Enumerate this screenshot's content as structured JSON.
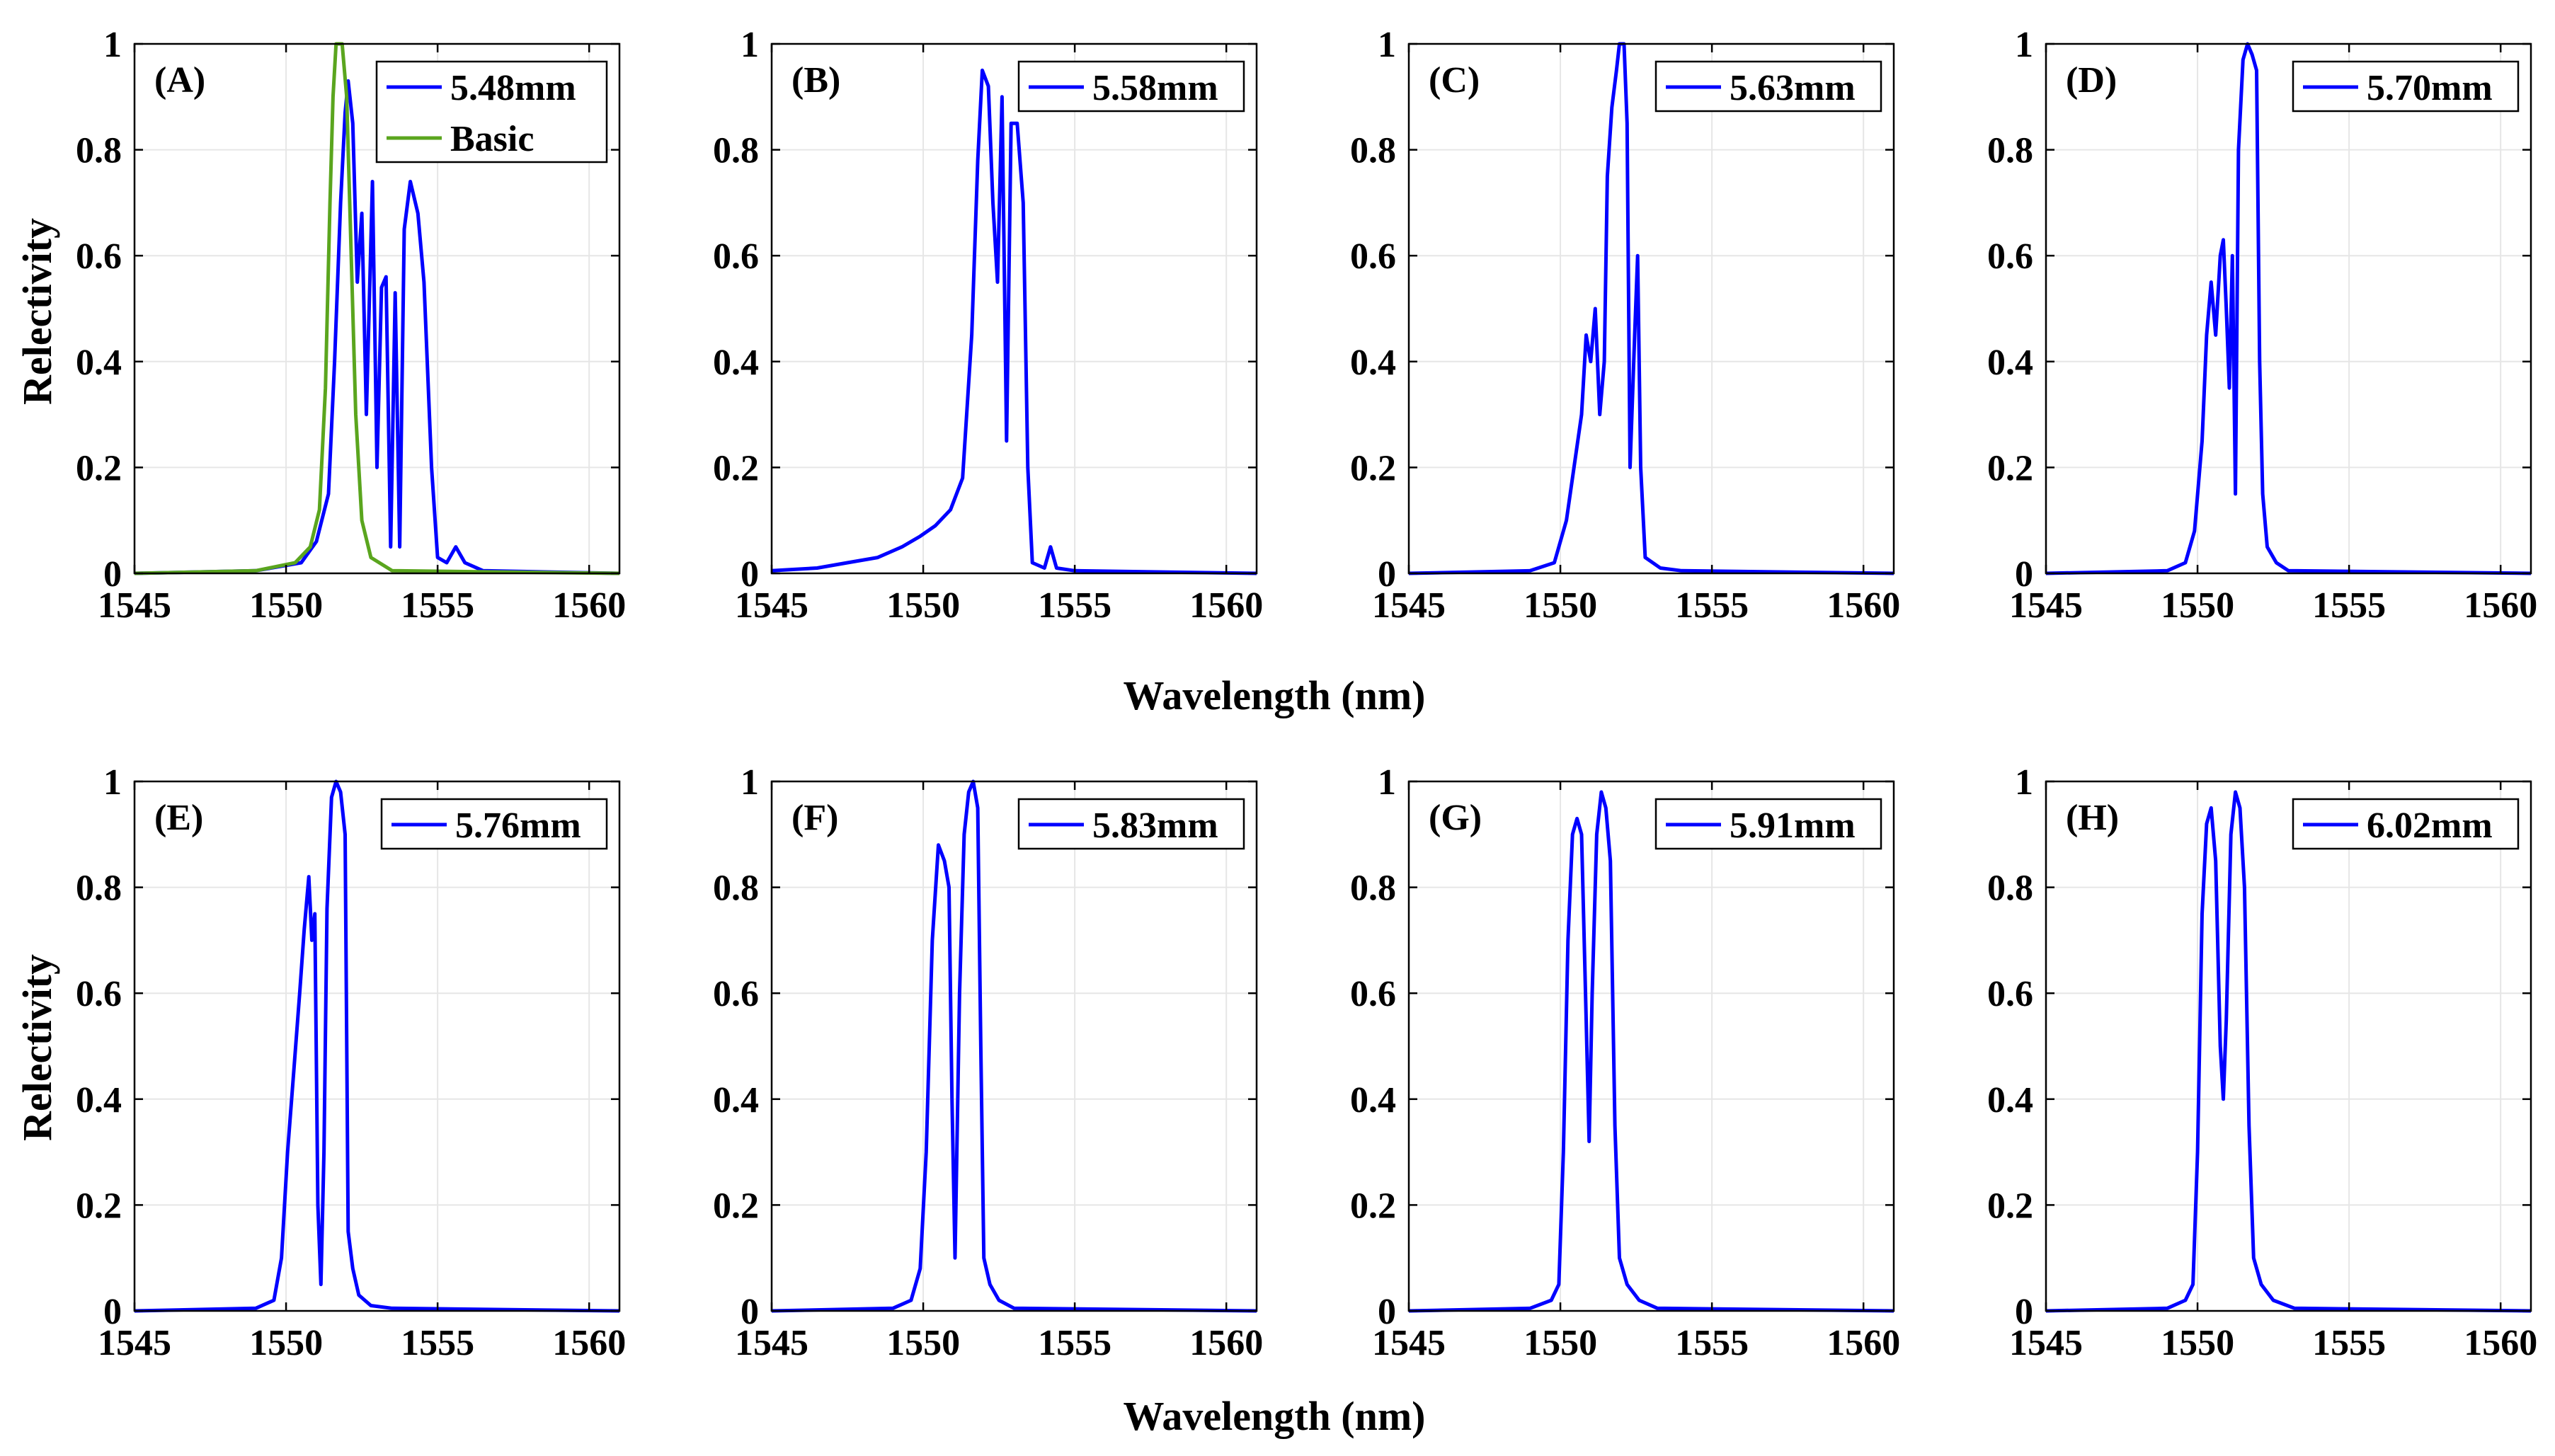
{
  "figure": {
    "xlabel_top": "Wavelength (nm)",
    "xlabel_bottom": "Wavelength (nm)",
    "ylabel_top": "Relectivity",
    "ylabel_bottom": "Relectivity"
  },
  "colors": {
    "series": "#0000ff",
    "basic": "#5aa51e",
    "grid": "#e6e6e6"
  },
  "chart_data": [
    {
      "type": "line",
      "label": "(A)",
      "xlim": [
        1545,
        1561
      ],
      "ylim": [
        0,
        1
      ],
      "xticks": [
        "1545",
        "1550",
        "1555",
        "1560"
      ],
      "yticks": [
        "0",
        "0.2",
        "0.4",
        "0.6",
        "0.8",
        "1"
      ],
      "legend": [
        "5.48mm",
        "Basic"
      ],
      "series": [
        {
          "name": "5.48mm",
          "color": "#0000ff",
          "points": [
            [
              1545,
              0
            ],
            [
              1549,
              0.005
            ],
            [
              1550.5,
              0.02
            ],
            [
              1551.0,
              0.06
            ],
            [
              1551.4,
              0.15
            ],
            [
              1551.6,
              0.4
            ],
            [
              1551.8,
              0.7
            ],
            [
              1551.95,
              0.87
            ],
            [
              1552.05,
              0.93
            ],
            [
              1552.2,
              0.85
            ],
            [
              1552.35,
              0.55
            ],
            [
              1552.5,
              0.68
            ],
            [
              1552.65,
              0.3
            ],
            [
              1552.85,
              0.74
            ],
            [
              1553.0,
              0.2
            ],
            [
              1553.15,
              0.54
            ],
            [
              1553.3,
              0.56
            ],
            [
              1553.45,
              0.05
            ],
            [
              1553.6,
              0.53
            ],
            [
              1553.75,
              0.05
            ],
            [
              1553.9,
              0.65
            ],
            [
              1554.1,
              0.74
            ],
            [
              1554.35,
              0.68
            ],
            [
              1554.55,
              0.55
            ],
            [
              1554.8,
              0.2
            ],
            [
              1555.0,
              0.03
            ],
            [
              1555.3,
              0.02
            ],
            [
              1555.6,
              0.05
            ],
            [
              1555.9,
              0.02
            ],
            [
              1556.5,
              0.005
            ],
            [
              1561,
              0
            ]
          ]
        },
        {
          "name": "Basic",
          "color": "#5aa51e",
          "points": [
            [
              1545,
              0
            ],
            [
              1549,
              0.005
            ],
            [
              1550.3,
              0.02
            ],
            [
              1550.8,
              0.05
            ],
            [
              1551.1,
              0.12
            ],
            [
              1551.3,
              0.35
            ],
            [
              1551.45,
              0.7
            ],
            [
              1551.55,
              0.9
            ],
            [
              1551.65,
              1.0
            ],
            [
              1551.85,
              1.0
            ],
            [
              1552.0,
              0.9
            ],
            [
              1552.15,
              0.6
            ],
            [
              1552.3,
              0.3
            ],
            [
              1552.5,
              0.1
            ],
            [
              1552.8,
              0.03
            ],
            [
              1553.5,
              0.005
            ],
            [
              1561,
              0
            ]
          ]
        }
      ]
    },
    {
      "type": "line",
      "label": "(B)",
      "xlim": [
        1545,
        1561
      ],
      "ylim": [
        0,
        1
      ],
      "xticks": [
        "1545",
        "1550",
        "1555",
        "1560"
      ],
      "yticks": [
        "0",
        "0.2",
        "0.4",
        "0.6",
        "0.8",
        "1"
      ],
      "legend": [
        "5.58mm"
      ],
      "series": [
        {
          "name": "5.58mm",
          "color": "#0000ff",
          "points": [
            [
              1545,
              0.005
            ],
            [
              1546.5,
              0.01
            ],
            [
              1547.5,
              0.02
            ],
            [
              1548.5,
              0.03
            ],
            [
              1549.3,
              0.05
            ],
            [
              1549.9,
              0.07
            ],
            [
              1550.4,
              0.09
            ],
            [
              1550.9,
              0.12
            ],
            [
              1551.3,
              0.18
            ],
            [
              1551.6,
              0.45
            ],
            [
              1551.8,
              0.78
            ],
            [
              1551.95,
              0.95
            ],
            [
              1552.15,
              0.92
            ],
            [
              1552.3,
              0.7
            ],
            [
              1552.45,
              0.55
            ],
            [
              1552.6,
              0.9
            ],
            [
              1552.75,
              0.25
            ],
            [
              1552.9,
              0.85
            ],
            [
              1553.1,
              0.85
            ],
            [
              1553.3,
              0.7
            ],
            [
              1553.45,
              0.2
            ],
            [
              1553.6,
              0.02
            ],
            [
              1554.0,
              0.01
            ],
            [
              1554.2,
              0.05
            ],
            [
              1554.4,
              0.01
            ],
            [
              1555,
              0.005
            ],
            [
              1561,
              0
            ]
          ]
        }
      ]
    },
    {
      "type": "line",
      "label": "(C)",
      "xlim": [
        1545,
        1561
      ],
      "ylim": [
        0,
        1
      ],
      "xticks": [
        "1545",
        "1550",
        "1555",
        "1560"
      ],
      "yticks": [
        "0",
        "0.2",
        "0.4",
        "0.6",
        "0.8",
        "1"
      ],
      "legend": [
        "5.63mm"
      ],
      "series": [
        {
          "name": "5.63mm",
          "color": "#0000ff",
          "points": [
            [
              1545,
              0
            ],
            [
              1549,
              0.005
            ],
            [
              1549.8,
              0.02
            ],
            [
              1550.2,
              0.1
            ],
            [
              1550.45,
              0.2
            ],
            [
              1550.7,
              0.3
            ],
            [
              1550.85,
              0.45
            ],
            [
              1551.0,
              0.4
            ],
            [
              1551.15,
              0.5
            ],
            [
              1551.3,
              0.3
            ],
            [
              1551.45,
              0.4
            ],
            [
              1551.55,
              0.75
            ],
            [
              1551.7,
              0.88
            ],
            [
              1551.85,
              0.95
            ],
            [
              1551.95,
              1.0
            ],
            [
              1552.1,
              1.0
            ],
            [
              1552.2,
              0.85
            ],
            [
              1552.3,
              0.2
            ],
            [
              1552.45,
              0.45
            ],
            [
              1552.55,
              0.6
            ],
            [
              1552.65,
              0.2
            ],
            [
              1552.8,
              0.03
            ],
            [
              1553.3,
              0.01
            ],
            [
              1554,
              0.005
            ],
            [
              1561,
              0
            ]
          ]
        }
      ]
    },
    {
      "type": "line",
      "label": "(D)",
      "xlim": [
        1545,
        1561
      ],
      "ylim": [
        0,
        1
      ],
      "xticks": [
        "1545",
        "1550",
        "1555",
        "1560"
      ],
      "yticks": [
        "0",
        "0.2",
        "0.4",
        "0.6",
        "0.8",
        "1"
      ],
      "legend": [
        "5.70mm"
      ],
      "series": [
        {
          "name": "5.70mm",
          "color": "#0000ff",
          "points": [
            [
              1545,
              0
            ],
            [
              1549,
              0.005
            ],
            [
              1549.6,
              0.02
            ],
            [
              1549.9,
              0.08
            ],
            [
              1550.15,
              0.25
            ],
            [
              1550.3,
              0.45
            ],
            [
              1550.45,
              0.55
            ],
            [
              1550.6,
              0.45
            ],
            [
              1550.75,
              0.6
            ],
            [
              1550.85,
              0.63
            ],
            [
              1550.95,
              0.5
            ],
            [
              1551.05,
              0.35
            ],
            [
              1551.15,
              0.6
            ],
            [
              1551.25,
              0.15
            ],
            [
              1551.35,
              0.8
            ],
            [
              1551.5,
              0.97
            ],
            [
              1551.65,
              1.0
            ],
            [
              1551.8,
              0.98
            ],
            [
              1551.95,
              0.95
            ],
            [
              1552.05,
              0.4
            ],
            [
              1552.15,
              0.15
            ],
            [
              1552.3,
              0.05
            ],
            [
              1552.6,
              0.02
            ],
            [
              1553,
              0.005
            ],
            [
              1561,
              0
            ]
          ]
        }
      ]
    },
    {
      "type": "line",
      "label": "(E)",
      "xlim": [
        1545,
        1561
      ],
      "ylim": [
        0,
        1
      ],
      "xticks": [
        "1545",
        "1550",
        "1555",
        "1560"
      ],
      "yticks": [
        "0",
        "0.2",
        "0.4",
        "0.6",
        "0.8",
        "1"
      ],
      "legend": [
        "5.76mm"
      ],
      "series": [
        {
          "name": "5.76mm",
          "color": "#0000ff",
          "points": [
            [
              1545,
              0
            ],
            [
              1549,
              0.005
            ],
            [
              1549.6,
              0.02
            ],
            [
              1549.85,
              0.1
            ],
            [
              1550.05,
              0.3
            ],
            [
              1550.25,
              0.45
            ],
            [
              1550.45,
              0.6
            ],
            [
              1550.6,
              0.72
            ],
            [
              1550.75,
              0.82
            ],
            [
              1550.85,
              0.7
            ],
            [
              1550.95,
              0.75
            ],
            [
              1551.05,
              0.2
            ],
            [
              1551.15,
              0.05
            ],
            [
              1551.25,
              0.3
            ],
            [
              1551.35,
              0.76
            ],
            [
              1551.5,
              0.97
            ],
            [
              1551.65,
              1.0
            ],
            [
              1551.8,
              0.98
            ],
            [
              1551.95,
              0.9
            ],
            [
              1552.05,
              0.15
            ],
            [
              1552.2,
              0.08
            ],
            [
              1552.4,
              0.03
            ],
            [
              1552.8,
              0.01
            ],
            [
              1553.5,
              0.005
            ],
            [
              1561,
              0
            ]
          ]
        }
      ]
    },
    {
      "type": "line",
      "label": "(F)",
      "xlim": [
        1545,
        1561
      ],
      "ylim": [
        0,
        1
      ],
      "xticks": [
        "1545",
        "1550",
        "1555",
        "1560"
      ],
      "yticks": [
        "0",
        "0.2",
        "0.4",
        "0.6",
        "0.8",
        "1"
      ],
      "legend": [
        "5.83mm"
      ],
      "series": [
        {
          "name": "5.83mm",
          "color": "#0000ff",
          "points": [
            [
              1545,
              0
            ],
            [
              1549,
              0.005
            ],
            [
              1549.6,
              0.02
            ],
            [
              1549.9,
              0.08
            ],
            [
              1550.1,
              0.3
            ],
            [
              1550.3,
              0.7
            ],
            [
              1550.5,
              0.88
            ],
            [
              1550.7,
              0.85
            ],
            [
              1550.85,
              0.8
            ],
            [
              1550.95,
              0.4
            ],
            [
              1551.05,
              0.1
            ],
            [
              1551.2,
              0.6
            ],
            [
              1551.35,
              0.9
            ],
            [
              1551.5,
              0.98
            ],
            [
              1551.65,
              1.0
            ],
            [
              1551.8,
              0.95
            ],
            [
              1551.9,
              0.5
            ],
            [
              1552.0,
              0.1
            ],
            [
              1552.2,
              0.05
            ],
            [
              1552.5,
              0.02
            ],
            [
              1553,
              0.005
            ],
            [
              1561,
              0
            ]
          ]
        }
      ]
    },
    {
      "type": "line",
      "label": "(G)",
      "xlim": [
        1545,
        1561
      ],
      "ylim": [
        0,
        1
      ],
      "xticks": [
        "1545",
        "1550",
        "1555",
        "1560"
      ],
      "yticks": [
        "0",
        "0.2",
        "0.4",
        "0.6",
        "0.8",
        "1"
      ],
      "legend": [
        "5.91mm"
      ],
      "series": [
        {
          "name": "5.91mm",
          "color": "#0000ff",
          "points": [
            [
              1545,
              0
            ],
            [
              1549,
              0.005
            ],
            [
              1549.7,
              0.02
            ],
            [
              1549.95,
              0.05
            ],
            [
              1550.1,
              0.3
            ],
            [
              1550.25,
              0.7
            ],
            [
              1550.4,
              0.9
            ],
            [
              1550.55,
              0.93
            ],
            [
              1550.7,
              0.9
            ],
            [
              1550.85,
              0.55
            ],
            [
              1550.95,
              0.32
            ],
            [
              1551.05,
              0.6
            ],
            [
              1551.2,
              0.9
            ],
            [
              1551.35,
              0.98
            ],
            [
              1551.5,
              0.95
            ],
            [
              1551.65,
              0.85
            ],
            [
              1551.8,
              0.35
            ],
            [
              1551.95,
              0.1
            ],
            [
              1552.2,
              0.05
            ],
            [
              1552.6,
              0.02
            ],
            [
              1553.2,
              0.005
            ],
            [
              1561,
              0
            ]
          ]
        }
      ]
    },
    {
      "type": "line",
      "label": "(H)",
      "xlim": [
        1545,
        1561
      ],
      "ylim": [
        0,
        1
      ],
      "xticks": [
        "1545",
        "1550",
        "1555",
        "1560"
      ],
      "yticks": [
        "0",
        "0.2",
        "0.4",
        "0.6",
        "0.8",
        "1"
      ],
      "legend": [
        "6.02mm"
      ],
      "series": [
        {
          "name": "6.02mm",
          "color": "#0000ff",
          "points": [
            [
              1545,
              0
            ],
            [
              1549,
              0.005
            ],
            [
              1549.6,
              0.02
            ],
            [
              1549.85,
              0.05
            ],
            [
              1550.0,
              0.3
            ],
            [
              1550.15,
              0.75
            ],
            [
              1550.3,
              0.92
            ],
            [
              1550.45,
              0.95
            ],
            [
              1550.6,
              0.85
            ],
            [
              1550.75,
              0.5
            ],
            [
              1550.85,
              0.4
            ],
            [
              1550.95,
              0.55
            ],
            [
              1551.1,
              0.9
            ],
            [
              1551.25,
              0.98
            ],
            [
              1551.4,
              0.95
            ],
            [
              1551.55,
              0.8
            ],
            [
              1551.7,
              0.35
            ],
            [
              1551.85,
              0.1
            ],
            [
              1552.1,
              0.05
            ],
            [
              1552.5,
              0.02
            ],
            [
              1553.2,
              0.005
            ],
            [
              1561,
              0
            ]
          ]
        }
      ]
    }
  ]
}
